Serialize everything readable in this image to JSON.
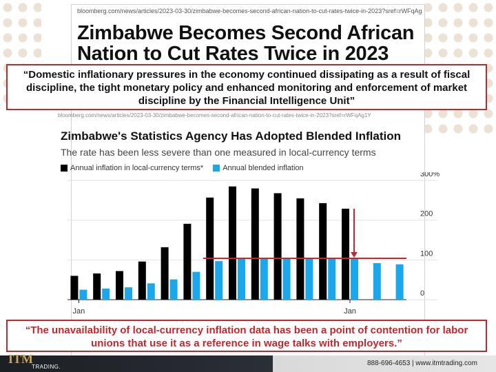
{
  "article": {
    "url": "bloomberg.com/news/articles/2023-03-30/zimbabwe-becomes-second-african-nation-to-cut-rates-twice-in-2023?sref=rWFqAg1Y",
    "headline": "Zimbabwe Becomes Second African Nation to Cut Rates Twice in 2023",
    "chart_url": "bloomberg.com/news/articles/2023-03-30/zimbabwe-becomes-second-african-nation-to-cut-rates-twice-in-2023?sref=rWFqAg1Y"
  },
  "quotes": {
    "top": "“Domestic inflationary pressures in the economy continued dissipating as a result of fiscal discipline, the tight monetary policy and enhanced monitoring and enforcement of market discipline by the Financial Intelligence Unit”",
    "bottom": "“The unavailability of local-currency inflation data has been a point of contention for labor unions that use it as a reference in wage talks with employers.”"
  },
  "colors": {
    "local_series": "#000000",
    "blended_series": "#1aa7ec",
    "annotation": "#c0282d",
    "quote_border": "#c0282d"
  },
  "footer": {
    "logo": "ITM",
    "logo_sub": "TRADING.",
    "phone": "888-696-4653 | www.itmtrading.com"
  },
  "chart_data": {
    "type": "bar",
    "title": "Zimbabwe's Statistics Agency Has Adopted Blended Inflation",
    "subtitle": "The rate has been less severe than one measured in local-currency terms",
    "xlabel": "",
    "ylabel": "",
    "ylim": [
      0,
      300
    ],
    "yticks": [
      0,
      100,
      200,
      300
    ],
    "ytick_labels": [
      "0",
      "100",
      "200",
      "300%"
    ],
    "x_tick_labels": [
      {
        "index": 0,
        "label": "Jan"
      },
      {
        "index": 12,
        "label": "Jan"
      }
    ],
    "legend_position": "top-left",
    "series": [
      {
        "name": "Annual inflation in local-currency terms*",
        "color": "#000000",
        "values": [
          60,
          66,
          72,
          96,
          132,
          191,
          257,
          285,
          280,
          268,
          255,
          243,
          229,
          null,
          null
        ]
      },
      {
        "name": "Annual blended inflation",
        "color": "#1aa7ec",
        "values": [
          25,
          28,
          31,
          41,
          51,
          70,
          97,
          104,
          104,
          104,
          104,
          104,
          104,
          92,
          89
        ]
      }
    ],
    "annotations": [
      {
        "type": "horizontal-line",
        "y": 104,
        "from_index": 6,
        "to_index": 14,
        "color": "#c0282d"
      },
      {
        "type": "arrow",
        "from": 229,
        "to": 104,
        "index": 12,
        "color": "#c0282d"
      }
    ]
  }
}
